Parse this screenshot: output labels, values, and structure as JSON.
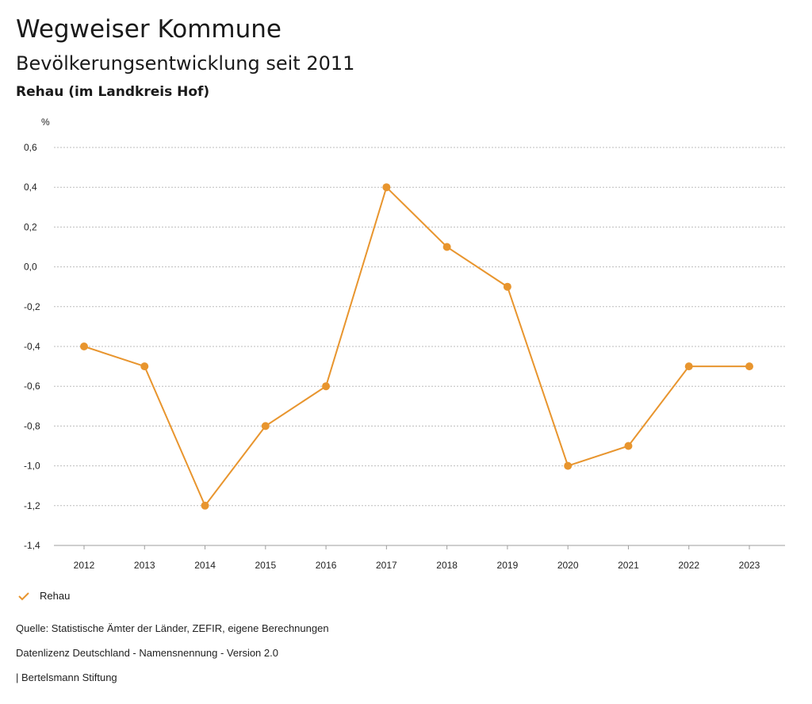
{
  "header": {
    "title": "Wegweiser Kommune",
    "subtitle": "Bevölkerungsentwicklung seit 2011",
    "region": "Rehau (im Landkreis Hof)"
  },
  "chart_data": {
    "type": "line",
    "title": "Bevölkerungsentwicklung seit 2011",
    "ylabel": "%",
    "xlabel": "",
    "categories": [
      "2012",
      "2013",
      "2014",
      "2015",
      "2016",
      "2017",
      "2018",
      "2019",
      "2020",
      "2021",
      "2022",
      "2023"
    ],
    "series": [
      {
        "name": "Rehau",
        "values": [
          -0.4,
          -0.5,
          -1.2,
          -0.8,
          -0.6,
          0.4,
          0.1,
          -0.1,
          -1.0,
          -0.9,
          -0.5,
          -0.5
        ],
        "color": "#E8952E"
      }
    ],
    "ylim": [
      -1.4,
      0.6
    ],
    "yticks": [
      0.6,
      0.4,
      0.2,
      0.0,
      -0.2,
      -0.4,
      -0.6,
      -0.8,
      -1.0,
      -1.2,
      -1.4
    ],
    "ytick_labels": [
      "0,6",
      "0,4",
      "0,2",
      "0,0",
      "-0,2",
      "-0,4",
      "-0,6",
      "-0,8",
      "-1,0",
      "-1,2",
      "-1,4"
    ],
    "grid": true,
    "legend_position": "bottom-left"
  },
  "legend": {
    "label": "Rehau"
  },
  "footer": {
    "source": "Quelle: Statistische Ämter der Länder, ZEFIR, eigene Berechnungen",
    "license": "Datenlizenz Deutschland - Namensnennung - Version 2.0",
    "credit": "| Bertelsmann Stiftung"
  },
  "colors": {
    "series": "#E8952E",
    "grid": "#bdbdbd"
  }
}
